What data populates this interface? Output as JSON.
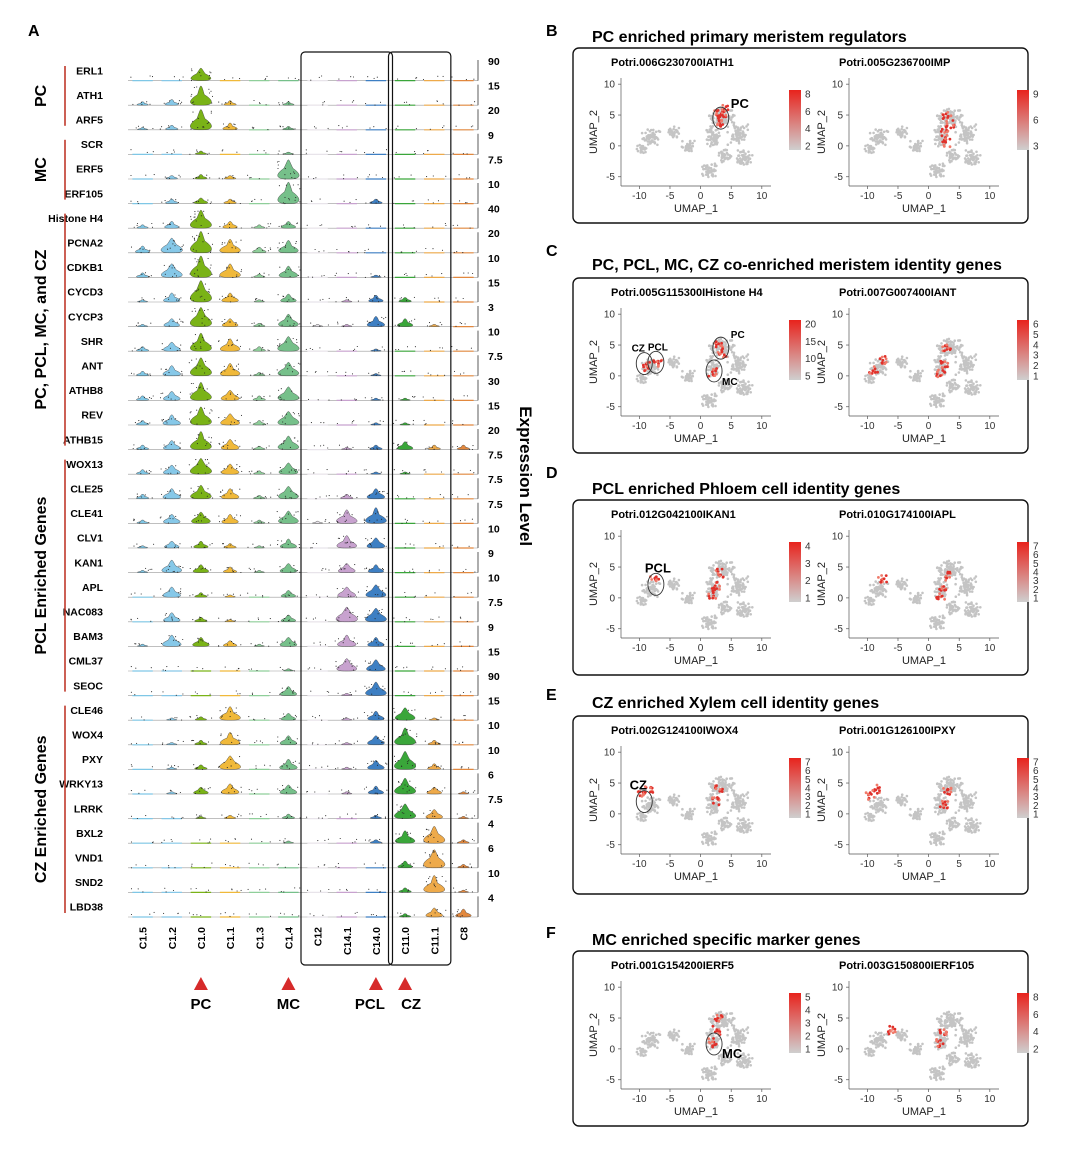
{
  "figure": {
    "panel_a": {
      "label": "A",
      "y_axis_title": "Expression Level",
      "groups": [
        {
          "name": "PC"
        },
        {
          "name": "MC"
        },
        {
          "name": "PC, PCL, MC, and CZ"
        },
        {
          "name": "PCL Enriched Genes"
        },
        {
          "name": "CZ Enriched Genes"
        }
      ],
      "clusters": [
        "C1.5",
        "C1.2",
        "C1.0",
        "C1.1",
        "C1.3",
        "C1.4",
        "C12",
        "C14.1",
        "C14.0",
        "C11.0",
        "C11.1",
        "C8"
      ],
      "cluster_colors": [
        "#7fc7e6",
        "#86c8e8",
        "#7ab317",
        "#f0b93a",
        "#8fcf9a",
        "#76c08a",
        "#e8e4ea",
        "#c8a2cf",
        "#3d7fc3",
        "#3aa63a",
        "#eeaa4a",
        "#e2883e"
      ],
      "markers": [
        {
          "label": "PC",
          "color": "#d62a2a"
        },
        {
          "label": "MC",
          "color": "#d62a2a"
        },
        {
          "label": "PCL",
          "color": "#d62a2a"
        },
        {
          "label": "CZ",
          "color": "#d62a2a"
        }
      ],
      "genes": [
        {
          "name": "ERL1",
          "max": "90",
          "expr": [
            0.0,
            0.0,
            0.55,
            0.0,
            0.0,
            0.0,
            0.0,
            0.0,
            0.0,
            0.0,
            0.0,
            0.0
          ]
        },
        {
          "name": "ATH1",
          "max": "15",
          "expr": [
            0.15,
            0.25,
            0.85,
            0.2,
            0.05,
            0.15,
            0.0,
            0.0,
            0.0,
            0.0,
            0.0,
            0.0
          ]
        },
        {
          "name": "ARF5",
          "max": "20",
          "expr": [
            0.1,
            0.2,
            0.9,
            0.3,
            0.05,
            0.15,
            0.0,
            0.0,
            0.0,
            0.0,
            0.0,
            0.0
          ]
        },
        {
          "name": "SCR",
          "max": "9",
          "expr": [
            0.0,
            0.05,
            0.15,
            0.0,
            0.0,
            0.1,
            0.0,
            0.0,
            0.0,
            0.0,
            0.0,
            0.0
          ]
        },
        {
          "name": "ERF5",
          "max": "7.5",
          "expr": [
            0.0,
            0.15,
            0.2,
            0.15,
            0.05,
            0.85,
            0.0,
            0.0,
            0.05,
            0.0,
            0.0,
            0.0
          ]
        },
        {
          "name": "ERF105",
          "max": "10",
          "expr": [
            0.0,
            0.2,
            0.25,
            0.2,
            0.05,
            0.95,
            0.0,
            0.0,
            0.2,
            0.0,
            0.0,
            0.0
          ]
        },
        {
          "name": "Histone H4",
          "max": "40",
          "expr": [
            0.15,
            0.3,
            0.8,
            0.3,
            0.15,
            0.3,
            0.0,
            0.0,
            0.0,
            0.0,
            0.0,
            0.0
          ]
        },
        {
          "name": "PCNA2",
          "max": "20",
          "expr": [
            0.3,
            0.65,
            0.95,
            0.6,
            0.25,
            0.55,
            0.0,
            0.05,
            0.05,
            0.05,
            0.0,
            0.0
          ]
        },
        {
          "name": "CDKB1",
          "max": "10",
          "expr": [
            0.2,
            0.6,
            0.95,
            0.6,
            0.15,
            0.5,
            0.05,
            0.05,
            0.1,
            0.05,
            0.0,
            0.0
          ]
        },
        {
          "name": "CYCD3",
          "max": "15",
          "expr": [
            0.1,
            0.4,
            0.95,
            0.4,
            0.1,
            0.35,
            0.05,
            0.1,
            0.3,
            0.2,
            0.05,
            0.0
          ]
        },
        {
          "name": "CYCP3",
          "max": "3",
          "expr": [
            0.1,
            0.35,
            0.85,
            0.35,
            0.15,
            0.55,
            0.1,
            0.1,
            0.45,
            0.35,
            0.1,
            0.05
          ]
        },
        {
          "name": "SHR",
          "max": "10",
          "expr": [
            0.2,
            0.4,
            0.8,
            0.55,
            0.2,
            0.65,
            0.05,
            0.05,
            0.1,
            0.05,
            0.0,
            0.0
          ]
        },
        {
          "name": "ANT",
          "max": "7.5",
          "expr": [
            0.2,
            0.45,
            0.8,
            0.55,
            0.15,
            0.6,
            0.05,
            0.05,
            0.1,
            0.05,
            0.05,
            0.0
          ]
        },
        {
          "name": "ATHB8",
          "max": "30",
          "expr": [
            0.2,
            0.4,
            0.8,
            0.45,
            0.2,
            0.6,
            0.0,
            0.05,
            0.1,
            0.1,
            0.0,
            0.0
          ]
        },
        {
          "name": "REV",
          "max": "15",
          "expr": [
            0.2,
            0.45,
            0.8,
            0.5,
            0.2,
            0.6,
            0.0,
            0.05,
            0.1,
            0.1,
            0.05,
            0.0
          ]
        },
        {
          "name": "ATHB15",
          "max": "20",
          "expr": [
            0.2,
            0.4,
            0.8,
            0.45,
            0.15,
            0.6,
            0.05,
            0.1,
            0.2,
            0.35,
            0.2,
            0.2
          ]
        },
        {
          "name": "WOX13",
          "max": "7.5",
          "expr": [
            0.2,
            0.4,
            0.7,
            0.45,
            0.15,
            0.5,
            0.0,
            0.05,
            0.1,
            0.1,
            0.05,
            0.05
          ]
        },
        {
          "name": "CLE25",
          "max": "7.5",
          "expr": [
            0.2,
            0.45,
            0.6,
            0.45,
            0.15,
            0.55,
            0.05,
            0.2,
            0.45,
            0.05,
            0.0,
            0.0
          ]
        },
        {
          "name": "CLE41",
          "max": "7.5",
          "expr": [
            0.15,
            0.4,
            0.5,
            0.4,
            0.15,
            0.55,
            0.1,
            0.6,
            0.7,
            0.05,
            0.0,
            0.0
          ]
        },
        {
          "name": "CLV1",
          "max": "10",
          "expr": [
            0.1,
            0.3,
            0.3,
            0.2,
            0.1,
            0.4,
            0.05,
            0.55,
            0.45,
            0.05,
            0.0,
            0.0
          ]
        },
        {
          "name": "KAN1",
          "max": "9",
          "expr": [
            0.1,
            0.55,
            0.35,
            0.25,
            0.1,
            0.4,
            0.05,
            0.4,
            0.35,
            0.05,
            0.0,
            0.0
          ]
        },
        {
          "name": "APL",
          "max": "10",
          "expr": [
            0.05,
            0.45,
            0.2,
            0.1,
            0.05,
            0.3,
            0.05,
            0.45,
            0.55,
            0.05,
            0.0,
            0.0
          ]
        },
        {
          "name": "NAC083",
          "max": "7.5",
          "expr": [
            0.05,
            0.4,
            0.2,
            0.1,
            0.05,
            0.3,
            0.05,
            0.65,
            0.6,
            0.05,
            0.0,
            0.0
          ]
        },
        {
          "name": "BAM3",
          "max": "9",
          "expr": [
            0.1,
            0.5,
            0.4,
            0.25,
            0.1,
            0.4,
            0.05,
            0.5,
            0.4,
            0.05,
            0.0,
            0.0
          ]
        },
        {
          "name": "CML37",
          "max": "15",
          "expr": [
            0.0,
            0.05,
            0.05,
            0.05,
            0.0,
            0.1,
            0.05,
            0.55,
            0.5,
            0.05,
            0.0,
            0.0
          ]
        },
        {
          "name": "SEOC",
          "max": "90",
          "expr": [
            0.0,
            0.0,
            0.0,
            0.0,
            0.0,
            0.4,
            0.0,
            0.1,
            0.6,
            0.0,
            0.0,
            0.0
          ]
        },
        {
          "name": "CLE46",
          "max": "15",
          "expr": [
            0.0,
            0.1,
            0.15,
            0.6,
            0.05,
            0.3,
            0.05,
            0.1,
            0.4,
            0.55,
            0.1,
            0.05
          ]
        },
        {
          "name": "WOX4",
          "max": "10",
          "expr": [
            0.0,
            0.1,
            0.2,
            0.55,
            0.05,
            0.4,
            0.05,
            0.1,
            0.4,
            0.75,
            0.2,
            0.05
          ]
        },
        {
          "name": "PXY",
          "max": "10",
          "expr": [
            0.0,
            0.1,
            0.2,
            0.6,
            0.05,
            0.45,
            0.05,
            0.1,
            0.4,
            0.8,
            0.25,
            0.05
          ]
        },
        {
          "name": "WRKY13",
          "max": "6",
          "expr": [
            0.0,
            0.1,
            0.3,
            0.45,
            0.05,
            0.4,
            0.05,
            0.1,
            0.35,
            0.7,
            0.3,
            0.1
          ]
        },
        {
          "name": "LRRK",
          "max": "7.5",
          "expr": [
            0.0,
            0.05,
            0.1,
            0.15,
            0.05,
            0.2,
            0.05,
            0.05,
            0.15,
            0.65,
            0.4,
            0.1
          ]
        },
        {
          "name": "BXL2",
          "max": "4",
          "expr": [
            0.0,
            0.05,
            0.05,
            0.05,
            0.0,
            0.1,
            0.0,
            0.05,
            0.15,
            0.55,
            0.75,
            0.15
          ]
        },
        {
          "name": "VND1",
          "max": "6",
          "expr": [
            0.0,
            0.0,
            0.05,
            0.05,
            0.0,
            0.05,
            0.0,
            0.0,
            0.05,
            0.3,
            0.8,
            0.15
          ]
        },
        {
          "name": "SND2",
          "max": "10",
          "expr": [
            0.0,
            0.0,
            0.05,
            0.05,
            0.0,
            0.05,
            0.0,
            0.0,
            0.05,
            0.2,
            0.75,
            0.1
          ]
        },
        {
          "name": "LBD38",
          "max": "4",
          "expr": [
            0.0,
            0.0,
            0.05,
            0.05,
            0.0,
            0.05,
            0.0,
            0.0,
            0.05,
            0.15,
            0.4,
            0.35
          ]
        }
      ]
    },
    "umap_panels": [
      {
        "label": "B",
        "title": "PC  enriched primary meristem regulators",
        "plots": [
          {
            "gene": "Potri.006G230700IATH1",
            "legend": [
              "8",
              "6",
              "4",
              "2"
            ],
            "callouts": [
              "PC"
            ],
            "hot": [
              [
                3,
                5.5
              ],
              [
                3.5,
                4.5
              ],
              [
                4,
                6
              ],
              [
                3,
                3.5
              ]
            ]
          },
          {
            "gene": "Potri.005G236700IMP",
            "legend": [
              "9",
              "6",
              "3"
            ],
            "callouts": [],
            "hot": [
              [
                3,
                5
              ],
              [
                3.5,
                3.5
              ],
              [
                2.5,
                2
              ],
              [
                3,
                0.5
              ]
            ]
          }
        ]
      },
      {
        "label": "C",
        "title": "PC, PCL, MC, CZ co-enriched meristem identity genes",
        "plots": [
          {
            "gene": "Potri.005G115300IHistone H4",
            "legend": [
              "20",
              "15",
              "10",
              "5"
            ],
            "callouts": [
              "CZ",
              "PCL",
              "PC",
              "MC"
            ],
            "hot": [
              [
                3,
                5
              ],
              [
                3.5,
                3.5
              ],
              [
                2,
                0.5
              ],
              [
                -7,
                2
              ],
              [
                -9,
                1.5
              ]
            ]
          },
          {
            "gene": "Potri.007G007400IANT",
            "legend": [
              "6",
              "5",
              "4",
              "3",
              "2",
              "1"
            ],
            "callouts": [],
            "hot": [
              [
                3,
                4.5
              ],
              [
                2.5,
                2
              ],
              [
                2,
                0.5
              ],
              [
                -7.5,
                2.5
              ],
              [
                -9,
                1
              ]
            ]
          }
        ]
      },
      {
        "label": "D",
        "title": "PCL enriched Phloem cell identity genes",
        "plots": [
          {
            "gene": "Potri.012G042100IKAN1",
            "legend": [
              "4",
              "3",
              "2",
              "1"
            ],
            "callouts": [
              "PCL"
            ],
            "hot": [
              [
                -7.5,
                3
              ],
              [
                3,
                4
              ],
              [
                2.5,
                2
              ],
              [
                2,
                0.5
              ]
            ]
          },
          {
            "gene": "Potri.010G174100IAPL",
            "legend": [
              "7",
              "6",
              "5",
              "4",
              "3",
              "2",
              "1"
            ],
            "callouts": [],
            "hot": [
              [
                -7.5,
                3
              ],
              [
                3,
                3.5
              ],
              [
                2.5,
                1.5
              ],
              [
                2,
                0
              ]
            ]
          }
        ]
      },
      {
        "label": "E",
        "title": "CZ enriched Xylem cell identity genes",
        "plots": [
          {
            "gene": "Potri.002G124100IWOX4",
            "legend": [
              "7",
              "6",
              "5",
              "4",
              "3",
              "2",
              "1"
            ],
            "callouts": [
              "CZ"
            ],
            "hot": [
              [
                -9.5,
                3
              ],
              [
                -8.5,
                4
              ],
              [
                2.5,
                2
              ],
              [
                3,
                4
              ]
            ]
          },
          {
            "gene": "Potri.001G126100IPXY",
            "legend": [
              "7",
              "6",
              "5",
              "4",
              "3",
              "2",
              "1"
            ],
            "callouts": [],
            "hot": [
              [
                -9.5,
                3
              ],
              [
                -8.5,
                4
              ],
              [
                2.5,
                1.5
              ],
              [
                3,
                3.5
              ]
            ]
          }
        ]
      },
      {
        "label": "F",
        "title": "MC enriched specific marker genes",
        "plots": [
          {
            "gene": "Potri.001G154200IERF5",
            "legend": [
              "5",
              "4",
              "3",
              "2",
              "1"
            ],
            "callouts": [
              "MC"
            ],
            "hot": [
              [
                2,
                1
              ],
              [
                2.5,
                3
              ],
              [
                3,
                5
              ]
            ]
          },
          {
            "gene": "Potri.003G150800IERF105",
            "legend": [
              "8",
              "6",
              "4",
              "2"
            ],
            "callouts": [],
            "hot": [
              [
                2,
                1
              ],
              [
                2.5,
                2.5
              ],
              [
                -6,
                3
              ]
            ]
          }
        ]
      }
    ],
    "umap_axes": {
      "x_label": "UMAP_1",
      "y_label": "UMAP_2",
      "x_ticks": [
        "-10",
        "-5",
        "0",
        "5",
        "10"
      ],
      "y_ticks": [
        "10",
        "5",
        "0",
        "-5"
      ]
    }
  }
}
